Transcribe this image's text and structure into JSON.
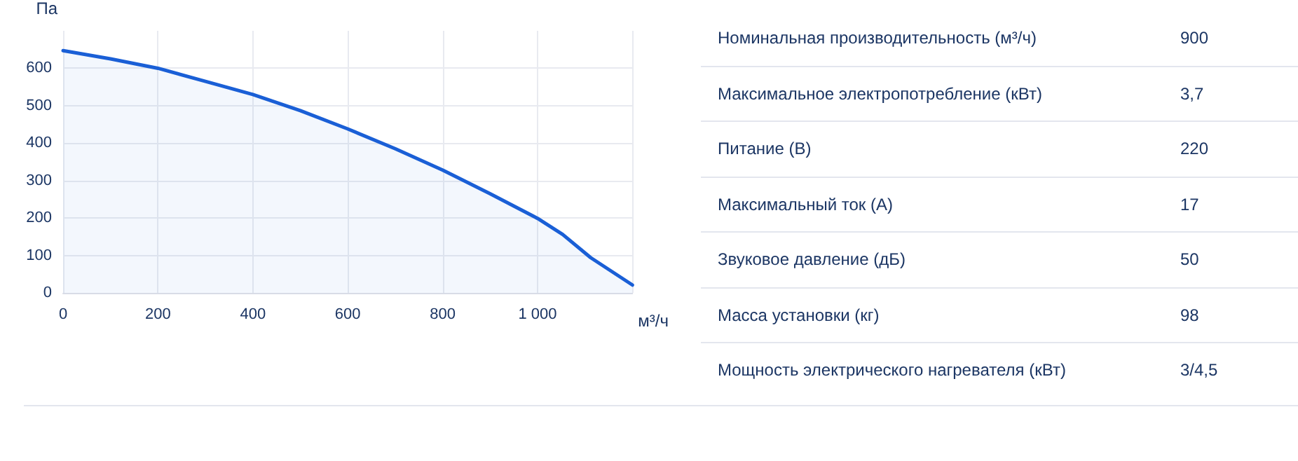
{
  "chart_data": [
    {
      "type": "area",
      "ylabel": "Па",
      "xlabel": "м³/ч",
      "x": [
        0,
        100,
        200,
        300,
        400,
        500,
        600,
        700,
        800,
        900,
        1000,
        1053,
        1112,
        1200
      ],
      "series": [
        {
          "color": "#1a5fd6",
          "values": [
            647,
            625,
            600,
            565,
            530,
            487,
            438,
            385,
            328,
            265,
            199,
            156,
            94,
            21
          ]
        }
      ],
      "xlim": [
        0,
        1200
      ],
      "ylim": [
        0,
        700
      ],
      "xticks": [
        0,
        200,
        400,
        600,
        800,
        {
          "value": 1000,
          "label": "1 000"
        },
        {
          "value": 1200,
          "label": null
        }
      ],
      "yticks": [
        0,
        100,
        200,
        300,
        400,
        500,
        600
      ],
      "grid": true,
      "marker": "none",
      "line_style": "solid"
    },
    {
      "type": "other",
      "annotations": [
        "Номинальная производительность (м³/ч)",
        "900",
        "Максимальное электропотребление (кВт)",
        "3,7",
        "Питание (В)",
        "220",
        "Максимальный ток (А)",
        "17",
        "Звуковое давление (дБ)",
        "50",
        "Масса установки (кг)",
        "98",
        "Мощность электрического нагревателя (кВт)",
        "3/4,5"
      ]
    }
  ]
}
